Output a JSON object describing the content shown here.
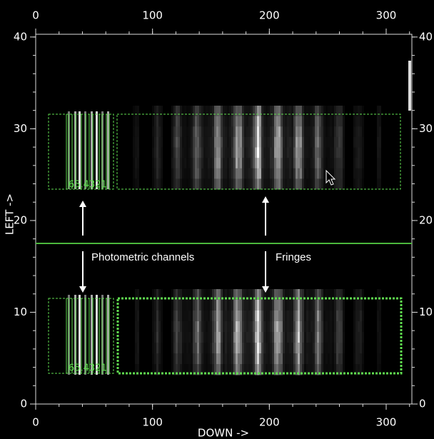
{
  "axes": {
    "xlim": [
      0,
      322
    ],
    "ylim": [
      0,
      40.3
    ],
    "xticks": [
      0,
      100,
      200,
      300
    ],
    "yticks": [
      0,
      10,
      20,
      30,
      40
    ],
    "xlabel": "DOWN ->",
    "ylabel": "LEFT ->"
  },
  "annotations": {
    "photometric": "Photometric channels",
    "fringes": "Fringes"
  },
  "channel_labels": {
    "top": "65.4321",
    "bottom": "65.4321"
  }
}
